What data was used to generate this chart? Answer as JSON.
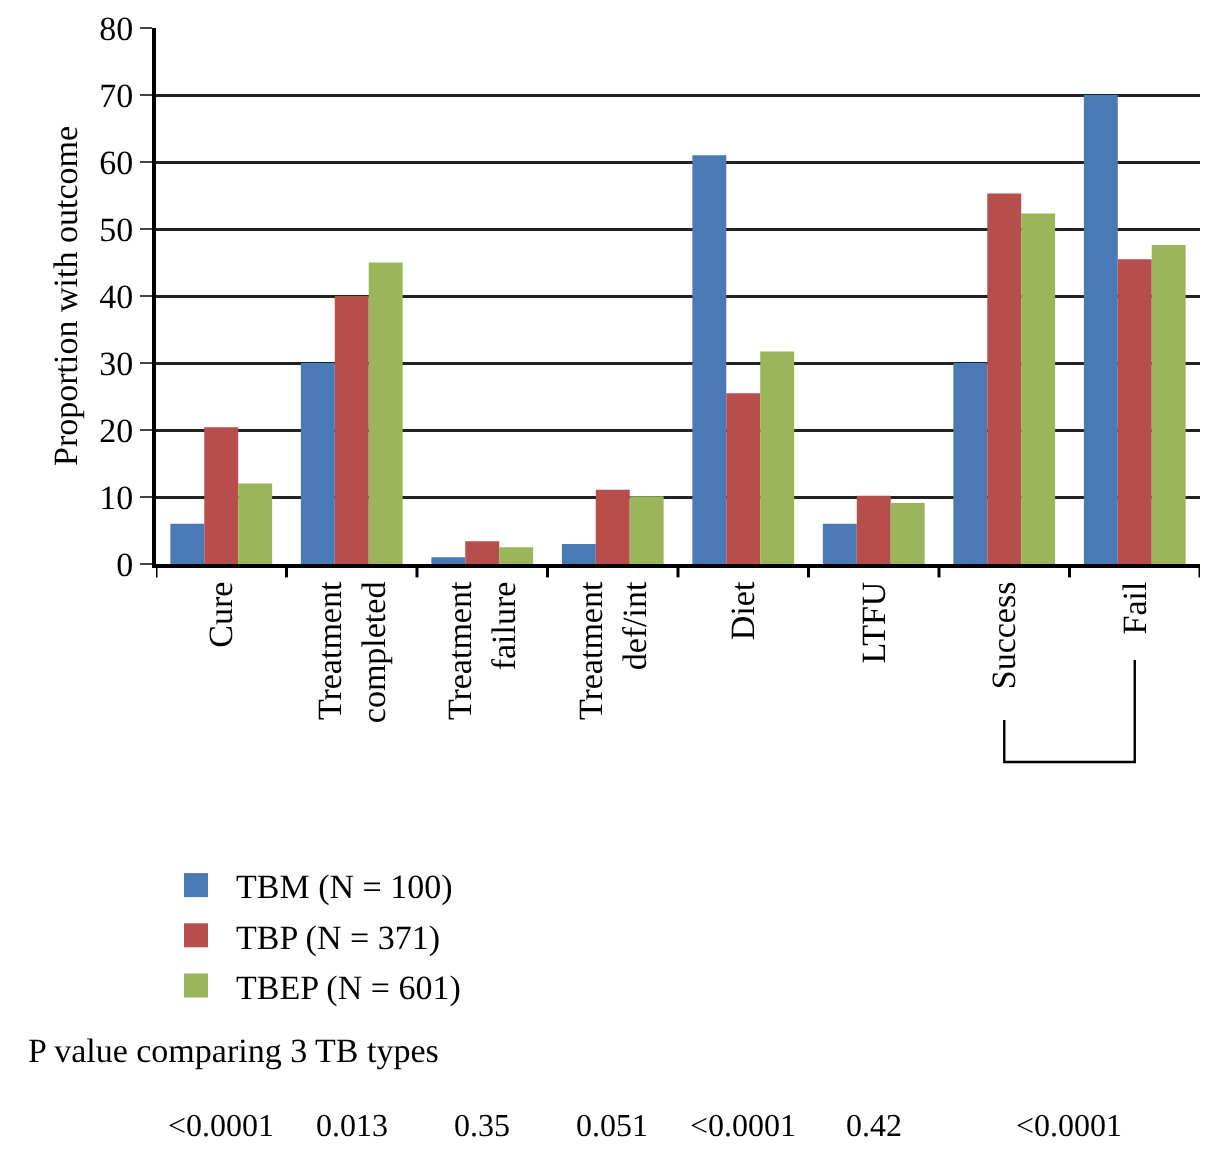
{
  "chart_data": {
    "type": "bar",
    "ylabel": "Proportion with outcome",
    "categories": [
      "Cure",
      "Treatment completed",
      "Treatment failure",
      "Treatment def/int",
      "Diet",
      "LTFU",
      "Success",
      "Fail"
    ],
    "series": [
      {
        "name": "TBM (N = 100)",
        "color": "#4a7ab5",
        "values": [
          6,
          30,
          1,
          3,
          61,
          6,
          30,
          70
        ]
      },
      {
        "name": "TBP (N = 371)",
        "color": "#b84e4c",
        "values": [
          20.4,
          40,
          3.4,
          11.1,
          25.5,
          10.2,
          55.3,
          45.5
        ]
      },
      {
        "name": "TBEP (N = 601)",
        "color": "#9ab55a",
        "values": [
          12,
          45,
          2.5,
          10.1,
          31.7,
          9.1,
          52.3,
          47.6
        ]
      }
    ],
    "ylim": [
      0,
      80
    ],
    "yticks": [
      0,
      10,
      20,
      30,
      40,
      50,
      60,
      70,
      80
    ],
    "grid": "y",
    "legend": "bottom",
    "annotations": [
      "P value comparing 3 TB types",
      "<0.0001",
      "0.013",
      "0.35",
      "0.051",
      "<0.0001",
      "0.42",
      "<0.0001"
    ]
  }
}
